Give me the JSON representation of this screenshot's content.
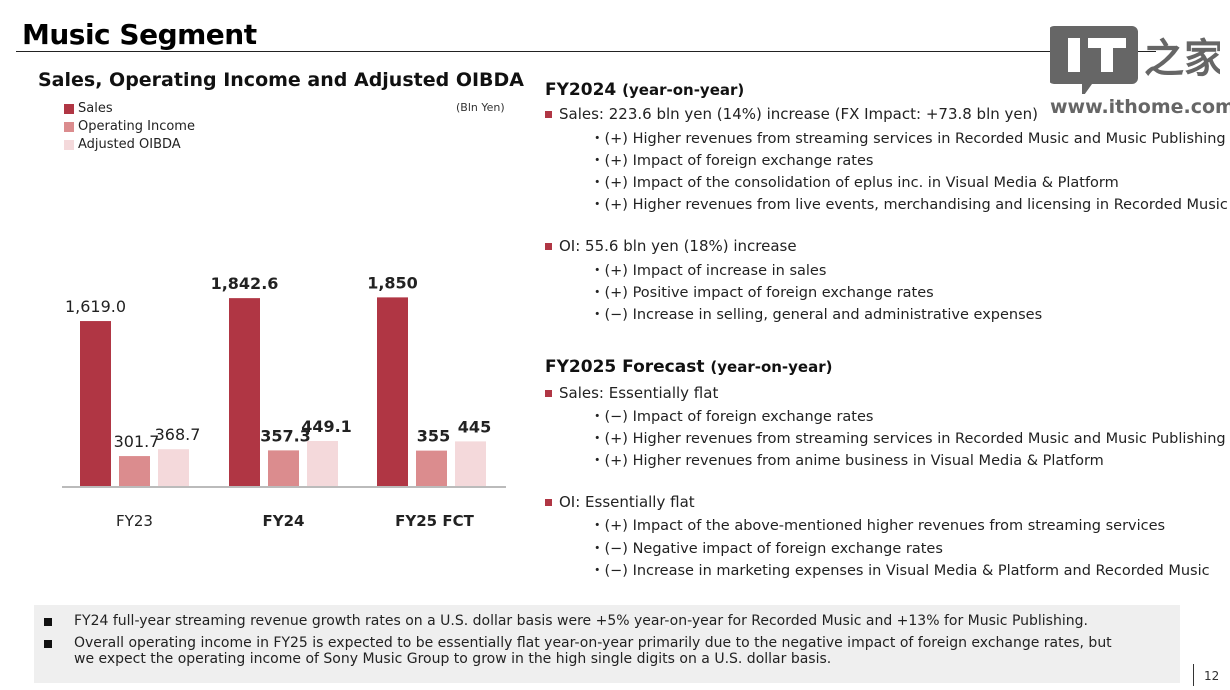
{
  "slide": {
    "title": "Music Segment",
    "page_number": "12"
  },
  "watermark": {
    "logo_text": "IT",
    "logo_cjk": "之家",
    "url": "www.ithome.com"
  },
  "chart_data": {
    "type": "bar",
    "title": "Sales, Operating Income and Adjusted OIBDA",
    "unit_label": "(Bln Yen)",
    "categories": [
      "FY23",
      "FY24",
      "FY25 FCT"
    ],
    "category_bold": [
      false,
      true,
      true
    ],
    "series": [
      {
        "name": "Sales",
        "color": "#b03644",
        "values": [
          1619.0,
          1842.6,
          1850
        ],
        "labels": [
          "1,619.0",
          "1,842.6",
          "1,850"
        ]
      },
      {
        "name": "Operating Income",
        "color": "#db8c8e",
        "values": [
          301.7,
          357.3,
          355
        ],
        "labels": [
          "301.7",
          "357.3",
          "355"
        ]
      },
      {
        "name": "Adjusted OIBDA",
        "color": "#f4d9db",
        "values": [
          368.7,
          449.1,
          445
        ],
        "labels": [
          "368.7",
          "449.1",
          "445"
        ]
      }
    ],
    "legend_position": "top-left",
    "grid": false,
    "ylim": [
      0,
      2000
    ],
    "xlabel": "",
    "ylabel": ""
  },
  "fy2024": {
    "heading": "FY2024",
    "heading_sub": "(year-on-year)",
    "sales": {
      "text": "Sales: 223.6 bln yen (14%) increase (FX Impact: +73.8 bln yen)",
      "items": [
        "・(+) Higher revenues from streaming services in Recorded Music and Music Publishing",
        "・(+) Impact of foreign exchange rates",
        "・(+) Impact of the consolidation of eplus inc. in Visual Media & Platform",
        "・(+) Higher revenues from live events, merchandising and licensing in Recorded Music"
      ]
    },
    "oi": {
      "text": "OI: 55.6 bln yen (18%) increase",
      "items": [
        "・(+) Impact of increase in sales",
        "・(+) Positive impact of foreign exchange rates",
        "・(−) Increase in selling, general and administrative expenses"
      ]
    }
  },
  "fy2025": {
    "heading": "FY2025 Forecast",
    "heading_sub": "(year-on-year)",
    "sales": {
      "text": "Sales: Essentially flat",
      "items": [
        "・(−) Impact of foreign exchange rates",
        "・(+) Higher revenues from streaming services in Recorded Music and Music Publishing",
        "・(+) Higher revenues from anime business in Visual Media & Platform"
      ]
    },
    "oi": {
      "text": "OI: Essentially flat",
      "items": [
        "・(+) Impact of the above-mentioned higher revenues from streaming services",
        "・(−) Negative impact of foreign exchange rates",
        "・(−) Increase in marketing expenses in Visual Media & Platform and Recorded Music"
      ]
    }
  },
  "notes": [
    "FY24 full-year streaming revenue growth rates on a U.S. dollar basis were +5% year-on-year for Recorded Music and +13% for Music Publishing.",
    "Overall operating income in FY25 is expected to be essentially flat year-on-year primarily due to the negative impact of foreign exchange rates, but we expect the operating income of Sony Music Group to grow in the high single digits on a U.S. dollar basis."
  ]
}
